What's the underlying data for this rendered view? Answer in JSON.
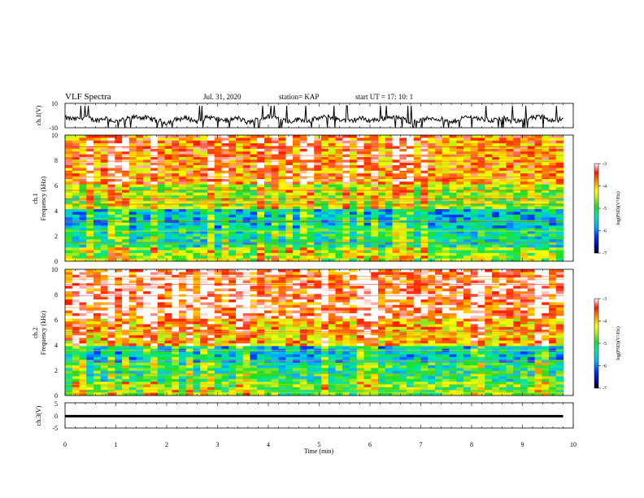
{
  "header": {
    "title": "VLF Spectra",
    "date": "Jul. 31, 2020",
    "station": "station= KAP",
    "start": "start UT =  17: 10: 1"
  },
  "chart_data": [
    {
      "type": "line",
      "panel": "ch1-waveform",
      "ylabel": "ch.1(V)",
      "ylim": [
        -10,
        10
      ],
      "yticks": [
        "10",
        "-10"
      ],
      "x_range_min": [
        0,
        9.8
      ],
      "approx_level_V": [
        -2,
        -3,
        -1,
        -4,
        -2,
        -5,
        -3,
        -1,
        -2,
        -4,
        -6,
        -3,
        -2,
        -5,
        -1,
        -3,
        -4,
        -2,
        -6,
        -3,
        -1,
        -2,
        -5,
        -3,
        -4,
        -2,
        -1,
        -3,
        -5,
        -2,
        -4,
        -3,
        -1,
        -2,
        -5,
        -4,
        -2,
        -3,
        -6,
        -2,
        -1,
        -3,
        -4,
        -2,
        -5,
        -3,
        -2,
        -1,
        -4,
        -3
      ]
    },
    {
      "type": "heatmap",
      "panel": "ch1-spectrogram",
      "ylabel": [
        "ch.1",
        "Frequency (kHz)"
      ],
      "ylim": [
        0,
        10
      ],
      "yticks": [
        "0",
        "2",
        "4",
        "6",
        "8",
        "10"
      ],
      "x_range_min": [
        0,
        9.8
      ],
      "colorbar": {
        "label": "log(PSD)(V²/Hz)",
        "range": [
          -7,
          -3
        ],
        "ticks": [
          "-3",
          "-4",
          "-5",
          "-6",
          "-7"
        ]
      },
      "approx_log_psd_by_freq_band_kHz": {
        "0-1": -4.6,
        "1-2.5": -5.3,
        "2.5-4.2": -5.6,
        "4.2-6": -4.6,
        "6-10": -3.8
      }
    },
    {
      "type": "heatmap",
      "panel": "ch2-spectrogram",
      "ylabel": [
        "ch.2",
        "Frequency (kHz)"
      ],
      "ylim": [
        0,
        10
      ],
      "yticks": [
        "0",
        "2",
        "4",
        "6",
        "8",
        "10"
      ],
      "x_range_min": [
        0,
        9.8
      ],
      "colorbar": {
        "label": "log(PSD)(V²/Hz)",
        "range": [
          -7,
          -3
        ],
        "ticks": [
          "-3",
          "-4",
          "-5",
          "-6",
          "-7"
        ]
      },
      "approx_log_psd_by_freq_band_kHz": {
        "0-1": -4.8,
        "1-2.5": -5.2,
        "2.5-4": -5.6,
        "4-6": -4.0,
        "6-10": -3.4
      }
    },
    {
      "type": "line",
      "panel": "ch3-waveform",
      "ylabel": "ch.3(V)",
      "ylim": [
        -5,
        5
      ],
      "yticks": [
        "5",
        "0",
        "-5"
      ],
      "x_range_min": [
        0,
        9.8
      ],
      "approx_band_V": [
        -0.8,
        0.2
      ]
    }
  ],
  "x_axis": {
    "label": "Time (min)",
    "ticks": [
      "0",
      "1",
      "2",
      "3",
      "4",
      "5",
      "6",
      "7",
      "8",
      "9",
      "10"
    ],
    "range": [
      0,
      10
    ]
  }
}
